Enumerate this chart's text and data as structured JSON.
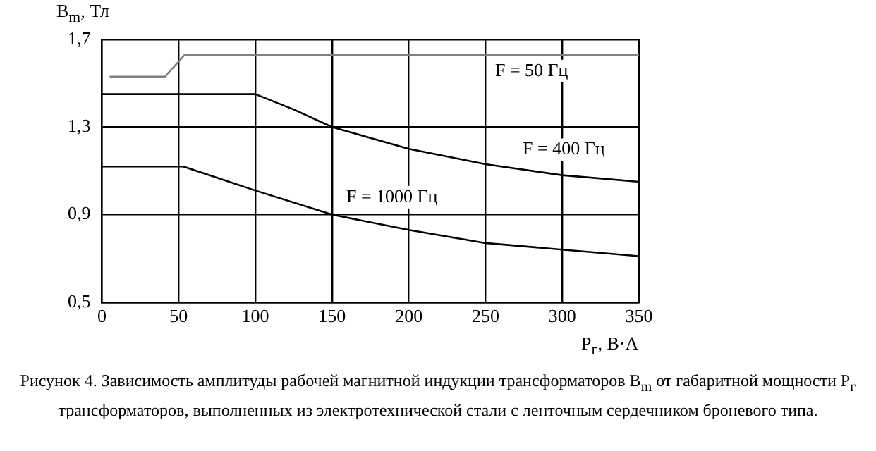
{
  "chart_data": {
    "type": "line",
    "xlabel": "P$_{г}$, В·А",
    "ylabel": "B$_{m}$, Тл",
    "xlim": [
      0,
      350
    ],
    "xticks": [
      0,
      50,
      100,
      150,
      200,
      250,
      300,
      350
    ],
    "ylim": [
      0.5,
      1.7
    ],
    "yticks": [
      {
        "value": 0.5,
        "label": "0,5"
      },
      {
        "value": 0.9,
        "label": "0,9"
      },
      {
        "value": 1.3,
        "label": "1,3"
      },
      {
        "value": 1.7,
        "label": "1,7"
      }
    ],
    "grid": true,
    "legend": false,
    "marker": "none",
    "line_style": "solid",
    "series": [
      {
        "color": "#808080",
        "x": [
          5,
          41,
          54,
          350
        ],
        "values": [
          1.53,
          1.53,
          1.63,
          1.63
        ]
      },
      {
        "color": "#000000",
        "x": [
          0,
          100,
          125,
          150,
          200,
          250,
          300,
          350
        ],
        "values": [
          1.45,
          1.45,
          1.38,
          1.3,
          1.2,
          1.13,
          1.08,
          1.05
        ]
      },
      {
        "color": "#000000",
        "x": [
          0,
          53,
          100,
          150,
          200,
          250,
          300,
          350
        ],
        "values": [
          1.12,
          1.12,
          1.01,
          0.9,
          0.83,
          0.77,
          0.74,
          0.71
        ]
      }
    ],
    "annotations": [
      "F = 50 Гц",
      "F = 400 Гц",
      "F = 1000 Гц",
      "Рисунок 4. Зависимость амплитуды рабочей магнитной индукции трансформаторов B$_{m}$ от габаритной мощности P$_{г}$ трансформаторов, выполненных из электротехнической стали с ленточным сердечником броневого типа."
    ]
  }
}
